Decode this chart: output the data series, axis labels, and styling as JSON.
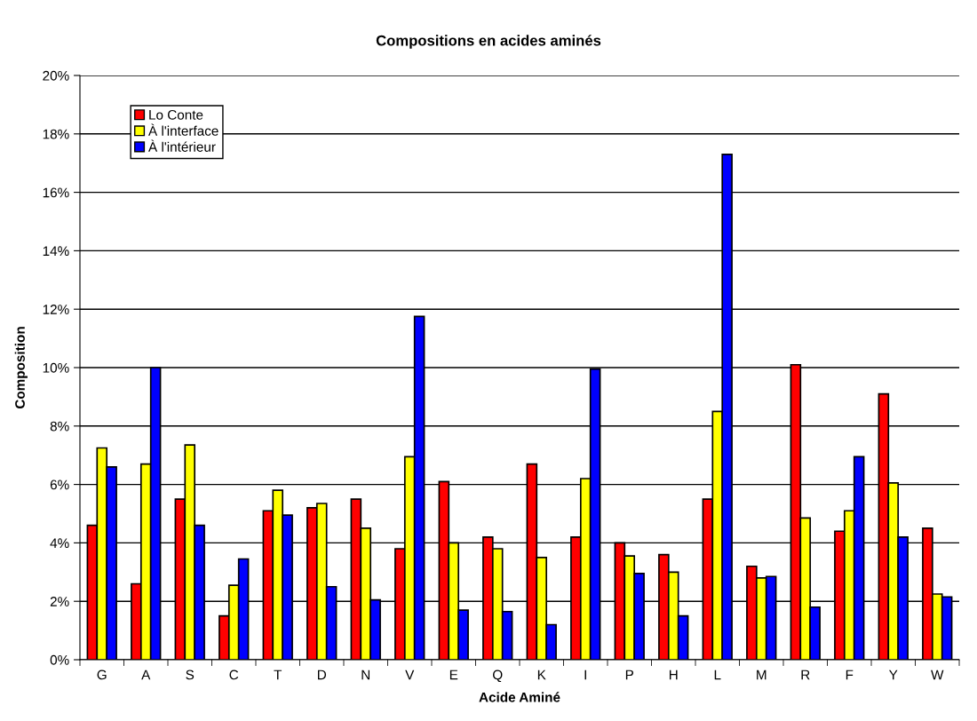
{
  "chart_data": {
    "type": "bar",
    "title": "Compositions en acides aminés",
    "xlabel": "Acide Aminé",
    "ylabel": "Composition",
    "categories": [
      "G",
      "A",
      "S",
      "C",
      "T",
      "D",
      "N",
      "V",
      "E",
      "Q",
      "K",
      "I",
      "P",
      "H",
      "L",
      "M",
      "R",
      "F",
      "Y",
      "W"
    ],
    "series": [
      {
        "name": "Lo Conte",
        "color": "#ff0000",
        "values": [
          4.6,
          2.6,
          5.5,
          1.5,
          5.1,
          5.2,
          5.5,
          3.8,
          6.1,
          4.2,
          6.7,
          4.2,
          4.0,
          3.6,
          5.5,
          3.2,
          10.1,
          4.4,
          9.1,
          4.5
        ]
      },
      {
        "name": "À l'interface",
        "color": "#ffff00",
        "values": [
          7.25,
          6.7,
          7.35,
          2.55,
          5.8,
          5.35,
          4.5,
          6.95,
          4.0,
          3.8,
          3.5,
          6.2,
          3.55,
          3.0,
          8.5,
          2.8,
          4.85,
          5.1,
          6.05,
          2.25
        ]
      },
      {
        "name": "À l'intérieur",
        "color": "#0000ff",
        "values": [
          6.6,
          10.0,
          4.6,
          3.45,
          4.95,
          2.5,
          2.05,
          11.75,
          1.7,
          1.65,
          1.2,
          9.95,
          2.95,
          1.5,
          17.3,
          2.85,
          1.8,
          6.95,
          4.2,
          2.15
        ]
      }
    ],
    "ylim": [
      0,
      20
    ],
    "yticks": [
      {
        "value": 0,
        "label": "0%"
      },
      {
        "value": 2,
        "label": "2%"
      },
      {
        "value": 4,
        "label": "4%"
      },
      {
        "value": 6,
        "label": "6%"
      },
      {
        "value": 8,
        "label": "8%"
      },
      {
        "value": 10,
        "label": "10%"
      },
      {
        "value": 12,
        "label": "12%"
      },
      {
        "value": 14,
        "label": "14%"
      },
      {
        "value": 16,
        "label": "16%"
      },
      {
        "value": 18,
        "label": "18%"
      },
      {
        "value": 20,
        "label": "20%"
      }
    ],
    "grid": "y",
    "legend": "top left"
  }
}
